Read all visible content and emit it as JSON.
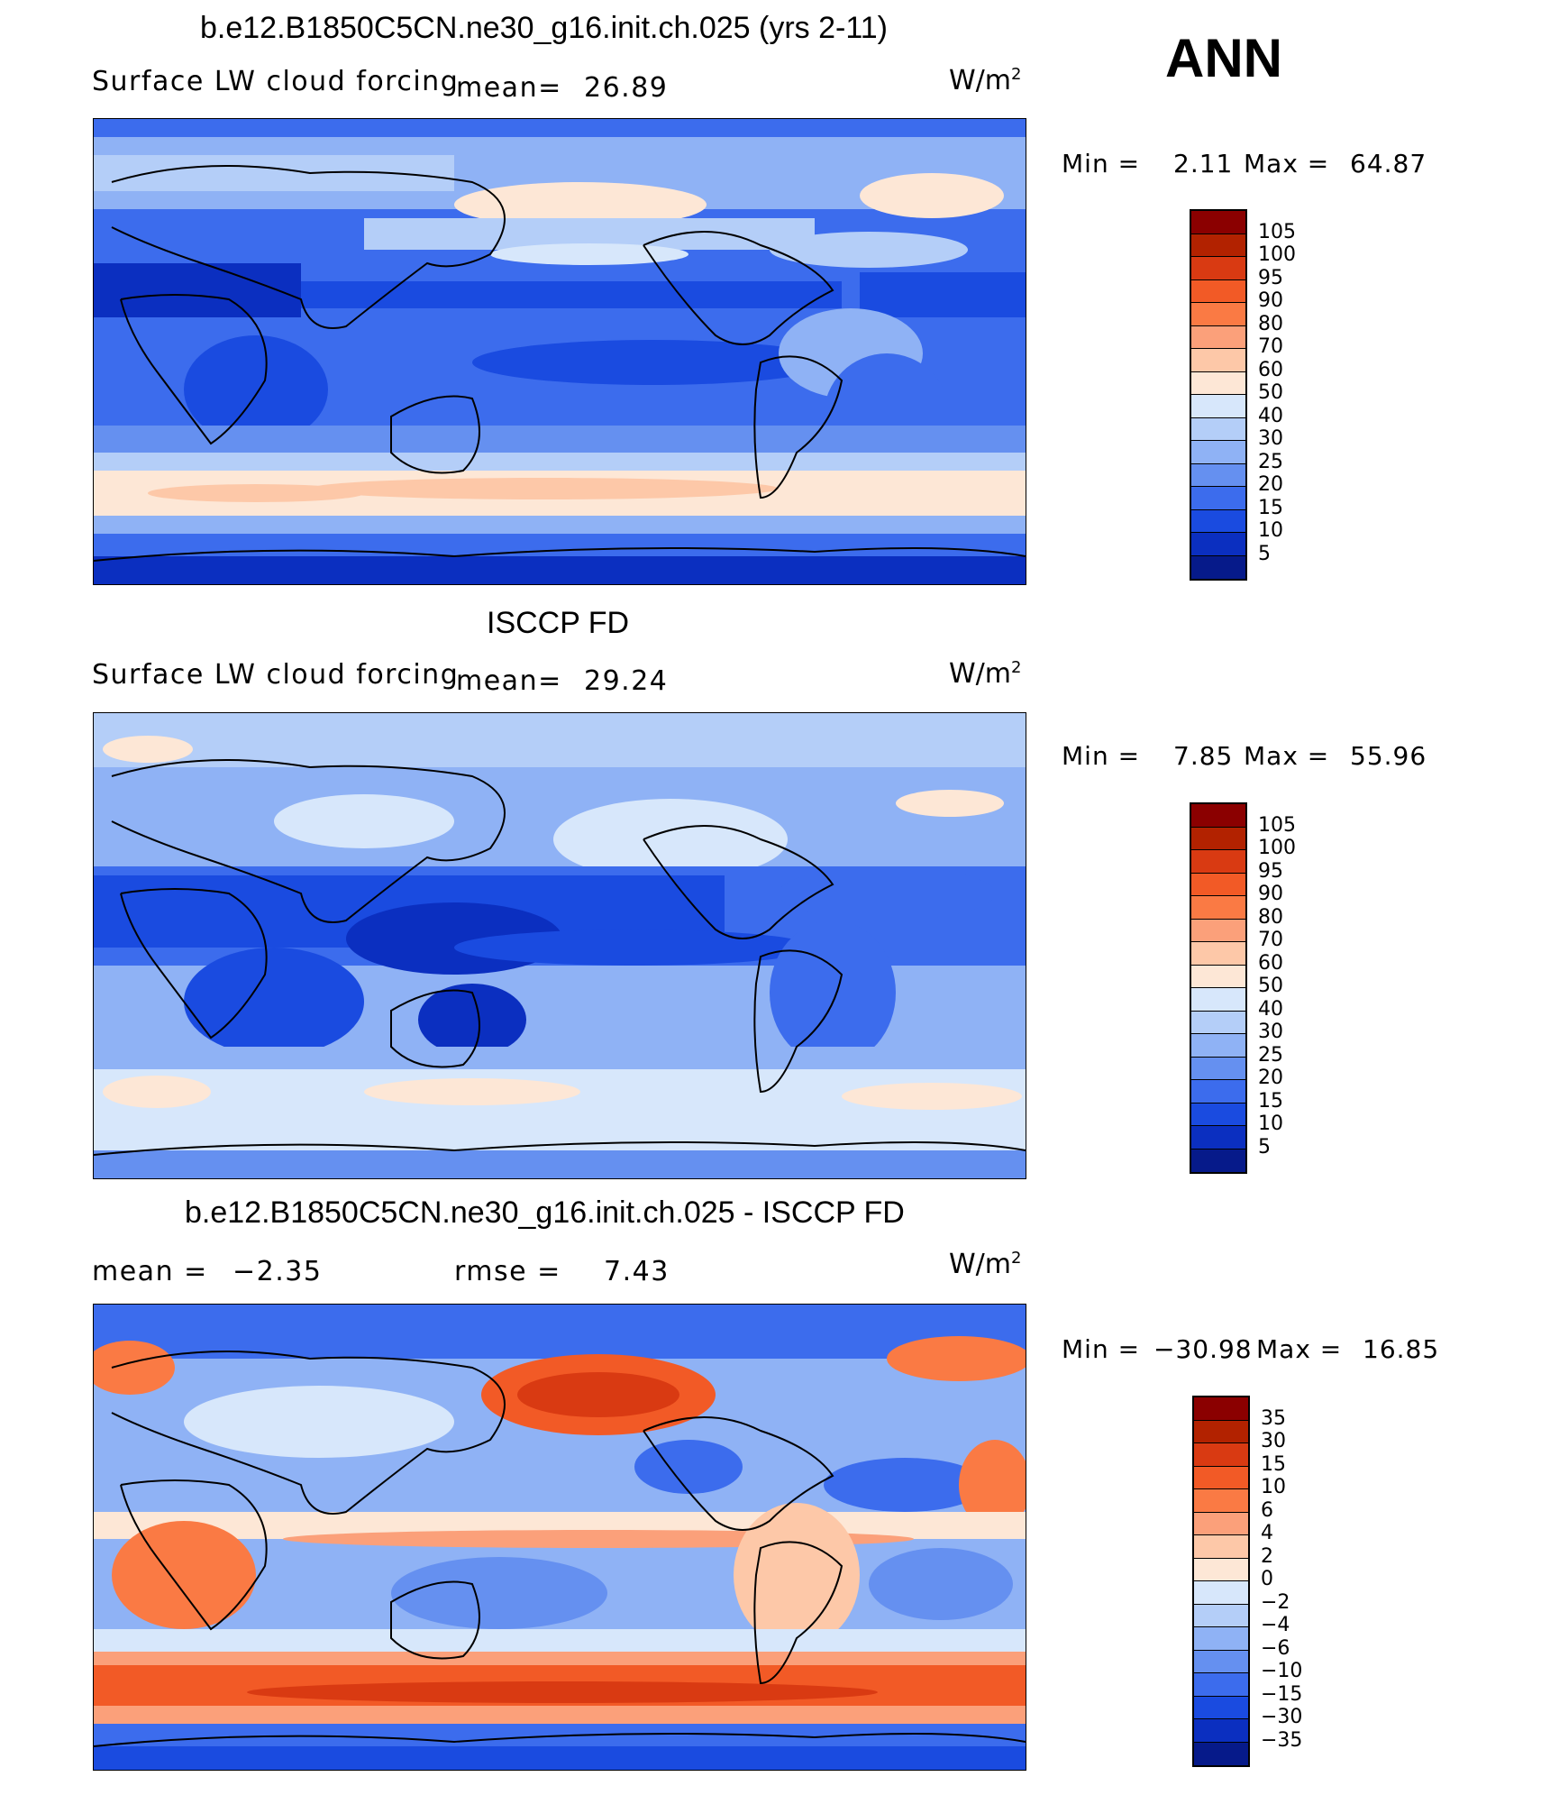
{
  "header": {
    "season": "ANN"
  },
  "panels": [
    {
      "id": "model",
      "title": "b.e12.B1850C5CN.ne30_g16.init.ch.025 (yrs 2-11)",
      "variable": "Surface LW cloud forcing",
      "stat_left_label": "mean=",
      "stat_left_value": "26.89",
      "unit_base": "W/m",
      "unit_exp": "2",
      "min_label": "Min =",
      "min_value": "2.11",
      "max_label": "Max =",
      "max_value": "64.87"
    },
    {
      "id": "obs",
      "title": "ISCCP FD",
      "variable": "Surface LW cloud forcing",
      "stat_left_label": "mean=",
      "stat_left_value": "29.24",
      "unit_base": "W/m",
      "unit_exp": "2",
      "min_label": "Min =",
      "min_value": "7.85",
      "max_label": "Max =",
      "max_value": "55.96"
    },
    {
      "id": "diff",
      "title": "b.e12.B1850C5CN.ne30_g16.init.ch.025 - ISCCP FD",
      "stat_left_label": "mean =",
      "stat_left_value": "−2.35",
      "stat_right_label": "rmse =",
      "stat_right_value": "7.43",
      "unit_base": "W/m",
      "unit_exp": "2",
      "min_label": "Min =",
      "min_value": "−30.98",
      "max_label": "Max =",
      "max_value": "16.85"
    }
  ],
  "chart_data": [
    {
      "type": "heatmap",
      "title": "b.e12.B1850C5CN.ne30_g16.init.ch.025 (yrs 2-11)",
      "subtitle": "Surface LW cloud forcing",
      "units": "W/m2",
      "mean": 26.89,
      "min": 2.11,
      "max": 64.87,
      "colorbar_levels": [
        "105",
        "100",
        "95",
        "90",
        "80",
        "70",
        "60",
        "50",
        "40",
        "30",
        "25",
        "20",
        "15",
        "10",
        "5"
      ],
      "colorbar_colors": [
        "#8b0000",
        "#b22200",
        "#d93a12",
        "#f25a26",
        "#fa7a44",
        "#fba07a",
        "#fdc8a8",
        "#fde7d6",
        "#d7e7fb",
        "#b4cef8",
        "#8fb2f5",
        "#6590f0",
        "#3c6ced",
        "#1a4be0",
        "#0b2fc0",
        "#061a8a"
      ]
    },
    {
      "type": "heatmap",
      "title": "ISCCP FD",
      "subtitle": "Surface LW cloud forcing",
      "units": "W/m2",
      "mean": 29.24,
      "min": 7.85,
      "max": 55.96,
      "colorbar_levels": [
        "105",
        "100",
        "95",
        "90",
        "80",
        "70",
        "60",
        "50",
        "40",
        "30",
        "25",
        "20",
        "15",
        "10",
        "5"
      ],
      "colorbar_colors": [
        "#8b0000",
        "#b22200",
        "#d93a12",
        "#f25a26",
        "#fa7a44",
        "#fba07a",
        "#fdc8a8",
        "#fde7d6",
        "#d7e7fb",
        "#b4cef8",
        "#8fb2f5",
        "#6590f0",
        "#3c6ced",
        "#1a4be0",
        "#0b2fc0",
        "#061a8a"
      ]
    },
    {
      "type": "heatmap",
      "title": "b.e12.B1850C5CN.ne30_g16.init.ch.025 - ISCCP FD",
      "units": "W/m2",
      "mean": -2.35,
      "rmse": 7.43,
      "min": -30.98,
      "max": 16.85,
      "colorbar_levels": [
        "35",
        "30",
        "15",
        "10",
        "6",
        "4",
        "2",
        "0",
        "−2",
        "−4",
        "−6",
        "−10",
        "−15",
        "−30",
        "−35"
      ],
      "colorbar_colors": [
        "#8b0000",
        "#b22200",
        "#d93a12",
        "#f25a26",
        "#fa7a44",
        "#fba07a",
        "#fdc8a8",
        "#fde7d6",
        "#d7e7fb",
        "#b4cef8",
        "#8fb2f5",
        "#6590f0",
        "#3c6ced",
        "#1a4be0",
        "#0b2fc0",
        "#061a8a"
      ]
    }
  ]
}
